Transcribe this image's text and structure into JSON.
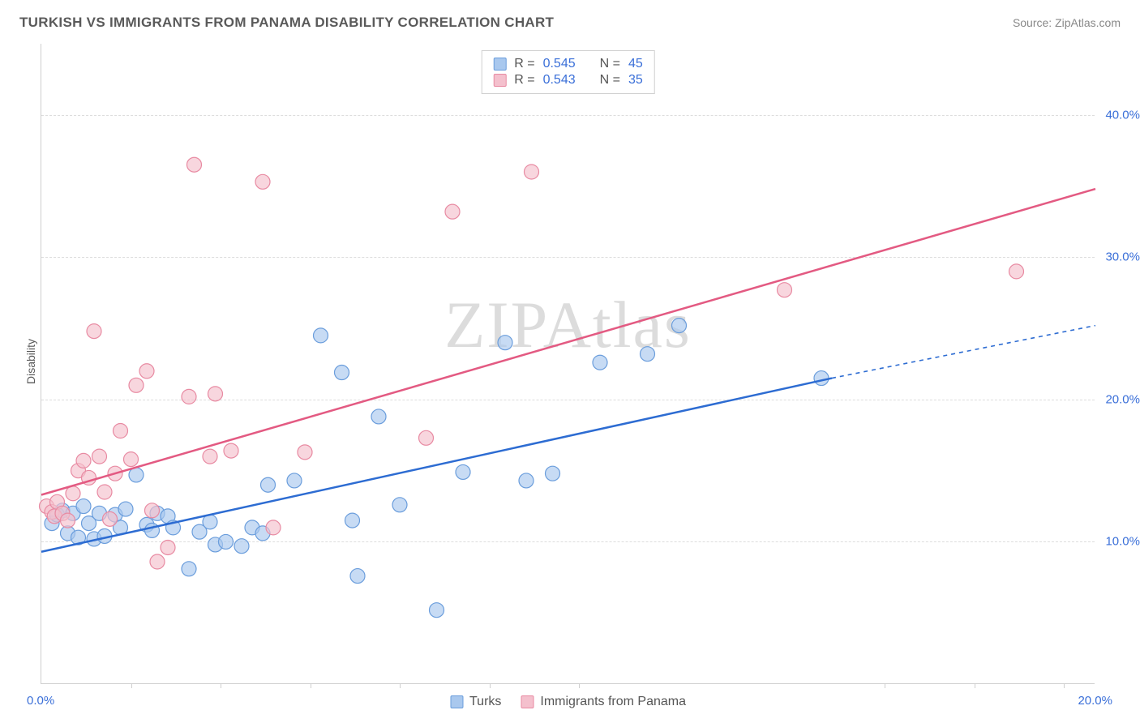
{
  "header": {
    "title": "TURKISH VS IMMIGRANTS FROM PANAMA DISABILITY CORRELATION CHART",
    "source": "Source: ZipAtlas.com"
  },
  "ylabel": "Disability",
  "watermark": "ZIPAtlas",
  "chart": {
    "type": "scatter",
    "x_range": [
      0,
      20
    ],
    "y_range": [
      0,
      45
    ],
    "y_ticks": [
      10,
      20,
      30,
      40
    ],
    "y_tick_labels": [
      "10.0%",
      "20.0%",
      "30.0%",
      "40.0%"
    ],
    "x_minor_ticks": [
      1.7,
      3.4,
      5.1,
      6.8,
      8.5,
      10.2,
      16.0,
      17.7,
      19.4
    ],
    "x_labels": {
      "min": "0.0%",
      "max": "20.0%"
    },
    "background_color": "#ffffff",
    "grid_color": "#dddddd",
    "series": [
      {
        "name": "Turks",
        "label": "Turks",
        "fill_color": "#a9c8ee",
        "stroke_color": "#6a9ddc",
        "line_color": "#2d6cd2",
        "marker_radius": 9,
        "R": "0.545",
        "N": "45",
        "points": [
          [
            0.2,
            11.3
          ],
          [
            0.3,
            11.9
          ],
          [
            0.4,
            12.2
          ],
          [
            0.5,
            10.6
          ],
          [
            0.6,
            12.0
          ],
          [
            0.7,
            10.3
          ],
          [
            0.8,
            12.5
          ],
          [
            0.9,
            11.3
          ],
          [
            1.0,
            10.2
          ],
          [
            1.1,
            12.0
          ],
          [
            1.2,
            10.4
          ],
          [
            1.4,
            11.9
          ],
          [
            1.5,
            11.0
          ],
          [
            1.6,
            12.3
          ],
          [
            1.8,
            14.7
          ],
          [
            2.0,
            11.2
          ],
          [
            2.1,
            10.8
          ],
          [
            2.2,
            12.0
          ],
          [
            2.4,
            11.8
          ],
          [
            2.5,
            11.0
          ],
          [
            2.8,
            8.1
          ],
          [
            3.0,
            10.7
          ],
          [
            3.2,
            11.4
          ],
          [
            3.3,
            9.8
          ],
          [
            3.5,
            10.0
          ],
          [
            3.8,
            9.7
          ],
          [
            4.0,
            11.0
          ],
          [
            4.2,
            10.6
          ],
          [
            4.3,
            14.0
          ],
          [
            4.8,
            14.3
          ],
          [
            5.3,
            24.5
          ],
          [
            5.7,
            21.9
          ],
          [
            5.9,
            11.5
          ],
          [
            6.0,
            7.6
          ],
          [
            6.4,
            18.8
          ],
          [
            6.8,
            12.6
          ],
          [
            7.5,
            5.2
          ],
          [
            8.0,
            14.9
          ],
          [
            8.8,
            24.0
          ],
          [
            9.2,
            14.3
          ],
          [
            9.7,
            14.8
          ],
          [
            10.6,
            22.6
          ],
          [
            11.5,
            23.2
          ],
          [
            12.1,
            25.2
          ],
          [
            14.8,
            21.5
          ]
        ],
        "trend": {
          "x1": 0,
          "y1": 9.3,
          "x2": 15,
          "y2": 21.5,
          "x2_dash": 20,
          "y2_dash": 25.2
        }
      },
      {
        "name": "Immigrants from Panama",
        "label": "Immigrants from Panama",
        "fill_color": "#f4c0cd",
        "stroke_color": "#e88aa2",
        "line_color": "#e35a82",
        "marker_radius": 9,
        "R": "0.543",
        "N": "35",
        "points": [
          [
            0.1,
            12.5
          ],
          [
            0.2,
            12.1
          ],
          [
            0.25,
            11.8
          ],
          [
            0.3,
            12.8
          ],
          [
            0.4,
            12.0
          ],
          [
            0.5,
            11.5
          ],
          [
            0.6,
            13.4
          ],
          [
            0.7,
            15.0
          ],
          [
            0.8,
            15.7
          ],
          [
            0.9,
            14.5
          ],
          [
            1.0,
            24.8
          ],
          [
            1.1,
            16.0
          ],
          [
            1.2,
            13.5
          ],
          [
            1.3,
            11.6
          ],
          [
            1.4,
            14.8
          ],
          [
            1.5,
            17.8
          ],
          [
            1.7,
            15.8
          ],
          [
            1.8,
            21.0
          ],
          [
            2.0,
            22.0
          ],
          [
            2.1,
            12.2
          ],
          [
            2.2,
            8.6
          ],
          [
            2.4,
            9.6
          ],
          [
            2.8,
            20.2
          ],
          [
            2.9,
            36.5
          ],
          [
            3.2,
            16.0
          ],
          [
            3.3,
            20.4
          ],
          [
            3.6,
            16.4
          ],
          [
            4.2,
            35.3
          ],
          [
            4.4,
            11.0
          ],
          [
            5.0,
            16.3
          ],
          [
            7.3,
            17.3
          ],
          [
            7.8,
            33.2
          ],
          [
            9.3,
            36.0
          ],
          [
            14.1,
            27.7
          ],
          [
            18.5,
            29.0
          ]
        ],
        "trend": {
          "x1": 0,
          "y1": 13.3,
          "x2": 20,
          "y2": 34.8
        }
      }
    ],
    "legend_top": {
      "R_label": "R =",
      "N_label": "N ="
    },
    "legend_bottom": true
  }
}
